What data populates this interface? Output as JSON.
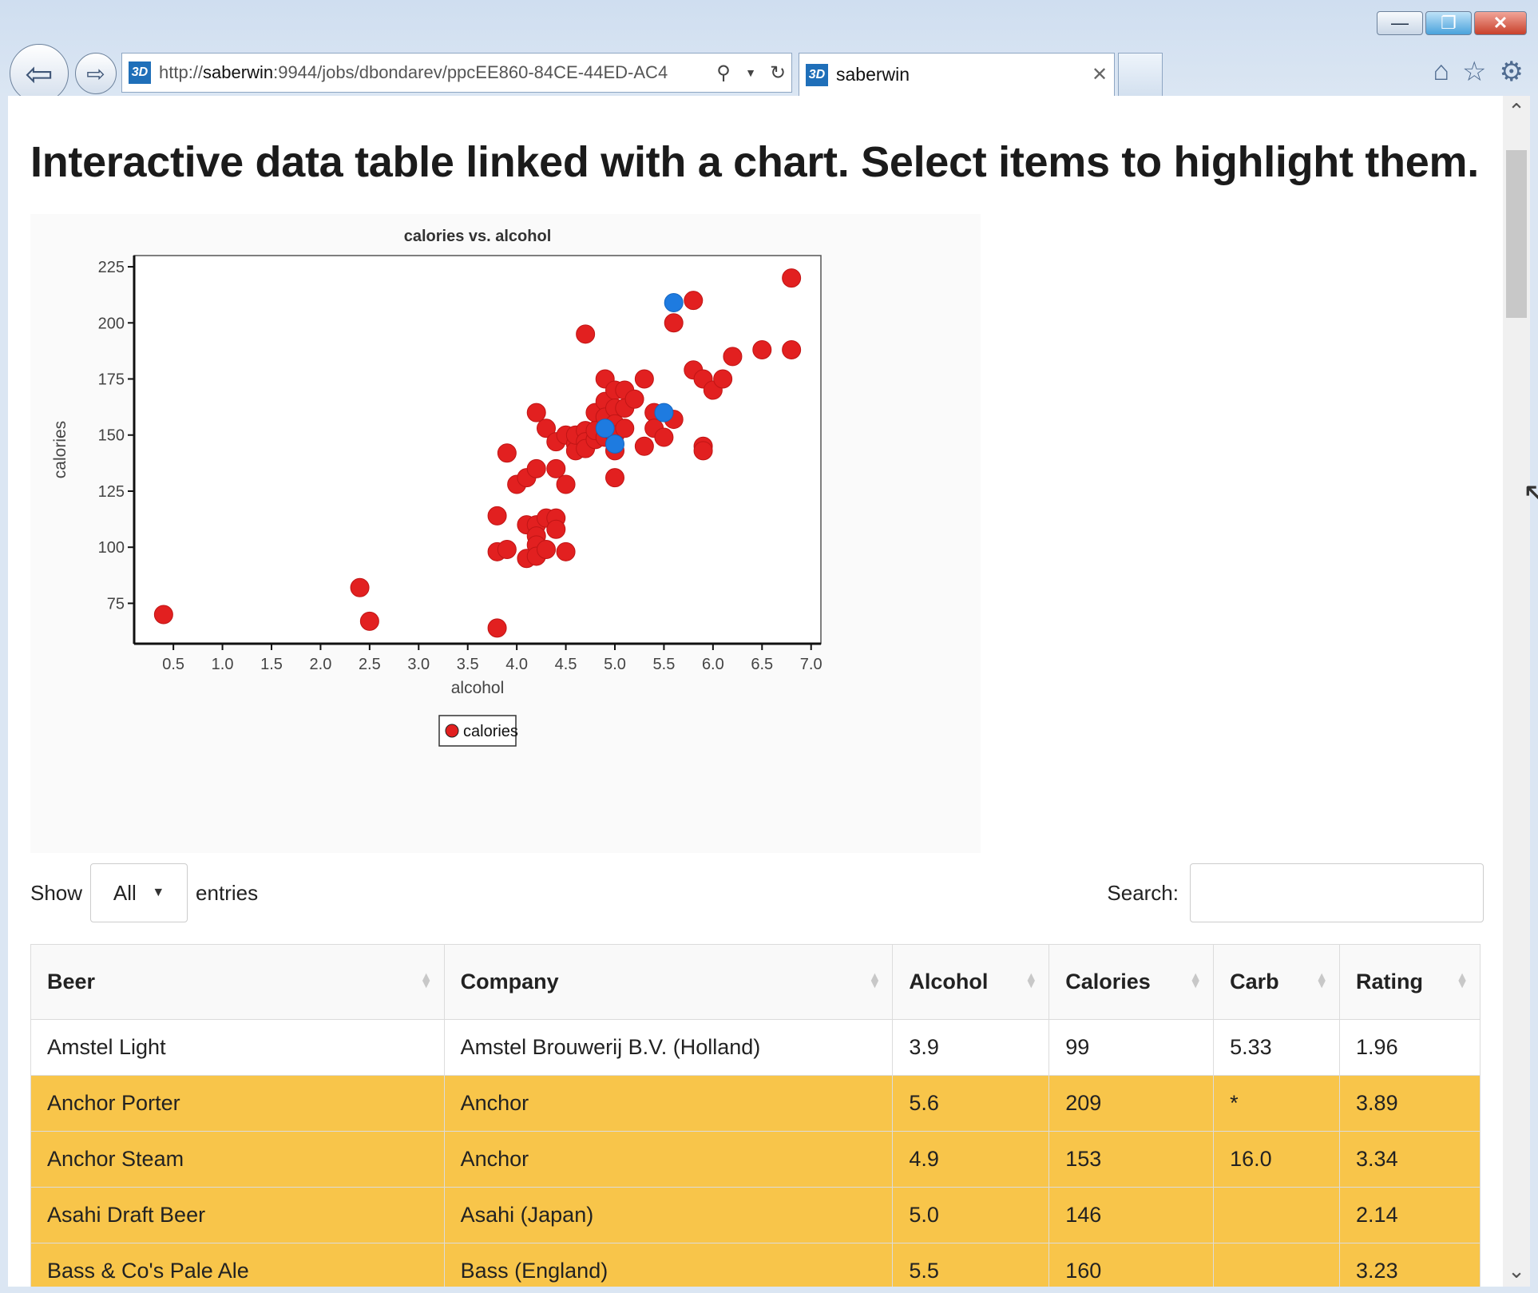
{
  "browser": {
    "url_prefix": "http://",
    "url_host": "saberwin",
    "url_rest": ":9944/jobs/dbondarev/ppcEE860-84CE-44ED-AC4",
    "tab_title": "saberwin",
    "site_icon": "3dx-logo-icon"
  },
  "page": {
    "title": "Interactive data table linked with a chart. Select items to highlight them."
  },
  "chart_data": {
    "type": "scatter",
    "title": "calories vs. alcohol",
    "xlabel": "alcohol",
    "ylabel": "calories",
    "xlim": [
      0.1,
      7.1
    ],
    "ylim": [
      57,
      230
    ],
    "xticks": [
      "0.5",
      "1.0",
      "1.5",
      "2.0",
      "2.5",
      "3.0",
      "3.5",
      "4.0",
      "4.5",
      "5.0",
      "5.5",
      "6.0",
      "6.5",
      "7.0"
    ],
    "yticks": [
      "75",
      "100",
      "125",
      "150",
      "175",
      "200",
      "225"
    ],
    "legend": [
      "calories"
    ],
    "legend_position": "bottom",
    "colors": {
      "normal": "#e22020",
      "highlight": "#1e7be0"
    },
    "points": [
      {
        "x": 0.4,
        "y": 70
      },
      {
        "x": 2.4,
        "y": 82
      },
      {
        "x": 2.5,
        "y": 67
      },
      {
        "x": 3.8,
        "y": 64
      },
      {
        "x": 3.8,
        "y": 114
      },
      {
        "x": 3.8,
        "y": 98
      },
      {
        "x": 3.9,
        "y": 99
      },
      {
        "x": 4.1,
        "y": 95
      },
      {
        "x": 4.1,
        "y": 110
      },
      {
        "x": 4.2,
        "y": 110
      },
      {
        "x": 4.2,
        "y": 105
      },
      {
        "x": 4.2,
        "y": 101
      },
      {
        "x": 4.2,
        "y": 96
      },
      {
        "x": 4.3,
        "y": 113
      },
      {
        "x": 4.3,
        "y": 99
      },
      {
        "x": 4.4,
        "y": 113
      },
      {
        "x": 4.4,
        "y": 108
      },
      {
        "x": 4.5,
        "y": 98
      },
      {
        "x": 3.9,
        "y": 142
      },
      {
        "x": 4.0,
        "y": 128
      },
      {
        "x": 4.1,
        "y": 131
      },
      {
        "x": 4.2,
        "y": 135
      },
      {
        "x": 4.2,
        "y": 160
      },
      {
        "x": 4.3,
        "y": 153
      },
      {
        "x": 4.4,
        "y": 147
      },
      {
        "x": 4.4,
        "y": 135
      },
      {
        "x": 4.5,
        "y": 128
      },
      {
        "x": 4.5,
        "y": 150
      },
      {
        "x": 4.6,
        "y": 146
      },
      {
        "x": 4.6,
        "y": 143
      },
      {
        "x": 4.6,
        "y": 150
      },
      {
        "x": 4.7,
        "y": 152
      },
      {
        "x": 4.7,
        "y": 147
      },
      {
        "x": 4.7,
        "y": 144
      },
      {
        "x": 4.7,
        "y": 195
      },
      {
        "x": 4.8,
        "y": 160
      },
      {
        "x": 4.8,
        "y": 148
      },
      {
        "x": 4.8,
        "y": 152
      },
      {
        "x": 4.9,
        "y": 175
      },
      {
        "x": 4.9,
        "y": 165
      },
      {
        "x": 4.9,
        "y": 158
      },
      {
        "x": 4.9,
        "y": 149
      },
      {
        "x": 5.0,
        "y": 170
      },
      {
        "x": 5.0,
        "y": 162
      },
      {
        "x": 5.0,
        "y": 155
      },
      {
        "x": 5.0,
        "y": 150
      },
      {
        "x": 5.0,
        "y": 143
      },
      {
        "x": 5.0,
        "y": 131
      },
      {
        "x": 5.1,
        "y": 170
      },
      {
        "x": 5.1,
        "y": 162
      },
      {
        "x": 5.1,
        "y": 153
      },
      {
        "x": 5.2,
        "y": 166
      },
      {
        "x": 5.3,
        "y": 145
      },
      {
        "x": 5.3,
        "y": 175
      },
      {
        "x": 5.4,
        "y": 160
      },
      {
        "x": 5.4,
        "y": 153
      },
      {
        "x": 5.5,
        "y": 149
      },
      {
        "x": 5.6,
        "y": 157
      },
      {
        "x": 5.6,
        "y": 200
      },
      {
        "x": 5.8,
        "y": 210
      },
      {
        "x": 5.8,
        "y": 179
      },
      {
        "x": 5.9,
        "y": 175
      },
      {
        "x": 5.9,
        "y": 145
      },
      {
        "x": 5.9,
        "y": 143
      },
      {
        "x": 6.0,
        "y": 170
      },
      {
        "x": 6.1,
        "y": 175
      },
      {
        "x": 6.2,
        "y": 185
      },
      {
        "x": 6.5,
        "y": 188
      },
      {
        "x": 6.8,
        "y": 188
      },
      {
        "x": 6.8,
        "y": 220
      },
      {
        "x": 5.6,
        "y": 209,
        "highlight": true
      },
      {
        "x": 4.9,
        "y": 153,
        "highlight": true
      },
      {
        "x": 5.0,
        "y": 146,
        "highlight": true
      },
      {
        "x": 5.5,
        "y": 160,
        "highlight": true
      }
    ]
  },
  "controls": {
    "show_label": "Show",
    "length_value": "All",
    "entries_label": "entries",
    "search_label": "Search:",
    "search_value": ""
  },
  "table": {
    "columns": [
      "Beer",
      "Company",
      "Alcohol",
      "Calories",
      "Carb",
      "Rating"
    ],
    "highlight_color": "#f8c54a",
    "rows": [
      {
        "cells": [
          "Amstel Light",
          "Amstel Brouwerij B.V. (Holland)",
          "3.9",
          "99",
          "5.33",
          "1.96"
        ],
        "selected": false
      },
      {
        "cells": [
          "Anchor Porter",
          "Anchor",
          "5.6",
          "209",
          "*",
          "3.89"
        ],
        "selected": true
      },
      {
        "cells": [
          "Anchor Steam",
          "Anchor",
          "4.9",
          "153",
          "16.0",
          "3.34"
        ],
        "selected": true
      },
      {
        "cells": [
          "Asahi Draft Beer",
          "Asahi (Japan)",
          "5.0",
          "146",
          "",
          "2.14"
        ],
        "selected": true
      },
      {
        "cells": [
          "Bass & Co's Pale Ale",
          "Bass (England)",
          "5.5",
          "160",
          "",
          "3.23"
        ],
        "selected": true
      }
    ]
  }
}
